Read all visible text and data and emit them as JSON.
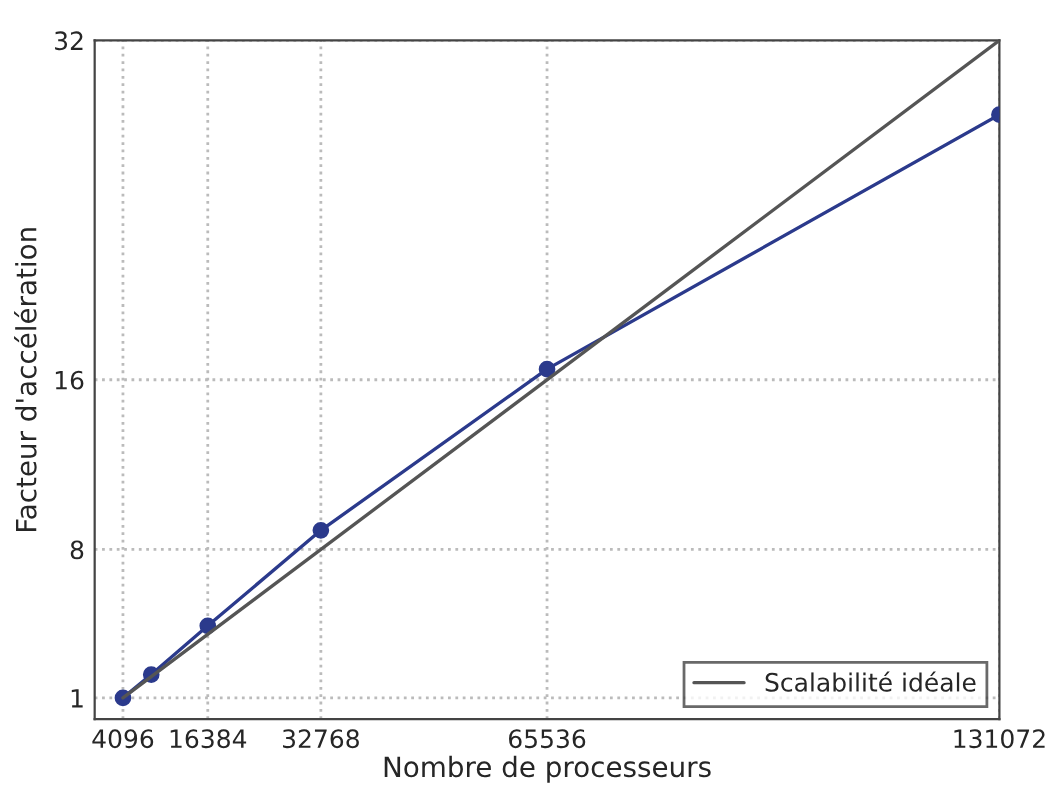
{
  "chart_data": {
    "type": "line",
    "xlabel": "Nombre de processeurs",
    "ylabel": "Facteur d'accélération",
    "xlim": [
      0,
      131072
    ],
    "xticks": [
      4096,
      16384,
      32768,
      65536,
      131072
    ],
    "ylim": [
      0,
      32
    ],
    "yticks": [
      1,
      8,
      16,
      32
    ],
    "grid": true,
    "legend": "bottom right",
    "series": [
      {
        "color": "#2b3a8c",
        "marker": "circle",
        "x": [
          4096,
          8192,
          16384,
          32768,
          65536,
          131072
        ],
        "values": [
          1,
          2.1,
          4.4,
          8.9,
          16.5,
          28.5
        ]
      },
      {
        "name": "Scalabilité idéale",
        "color": "#555555",
        "marker": "none",
        "x": [
          4096,
          131072
        ],
        "values": [
          1,
          32
        ]
      }
    ]
  }
}
